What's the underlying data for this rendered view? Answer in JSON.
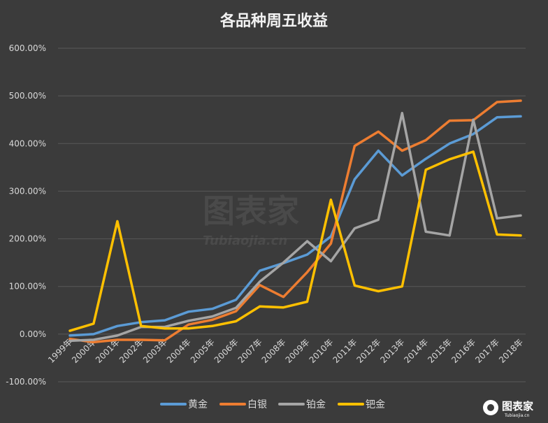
{
  "chart_data": {
    "type": "line",
    "title": "各品种周五收益",
    "categories": [
      "1999年",
      "2000年",
      "2001年",
      "2002年",
      "2003年",
      "2004年",
      "2005年",
      "2006年",
      "2007年",
      "2008年",
      "2009年",
      "2010年",
      "2011年",
      "2012年",
      "2013年",
      "2014年",
      "2015年",
      "2016年",
      "2017年",
      "2018年"
    ],
    "y_ticks": [
      "600.00%",
      "500.00%",
      "400.00%",
      "300.00%",
      "200.00%",
      "100.00%",
      "0.00%",
      "-100.00%"
    ],
    "ylim": [
      -100,
      600
    ],
    "grid": true,
    "legend_position": "bottom",
    "series": [
      {
        "name": "黄金",
        "color": "#5b9bd5",
        "values": [
          -3,
          0,
          17,
          25,
          29,
          47,
          53,
          72,
          133,
          149,
          167,
          205,
          325,
          385,
          333,
          368,
          400,
          420,
          455,
          457
        ]
      },
      {
        "name": "白银",
        "color": "#ed7d31",
        "values": [
          -10,
          -17,
          -12,
          -12,
          -13,
          20,
          30,
          48,
          103,
          78,
          130,
          190,
          395,
          425,
          385,
          407,
          448,
          449,
          487,
          490
        ]
      },
      {
        "name": "铂金",
        "color": "#a5a5a5",
        "values": [
          -14,
          -12,
          -3,
          15,
          15,
          28,
          37,
          55,
          110,
          150,
          195,
          153,
          222,
          240,
          464,
          215,
          207,
          450,
          243,
          249
        ]
      },
      {
        "name": "钯金",
        "color": "#ffc000",
        "values": [
          7,
          22,
          237,
          17,
          12,
          12,
          17,
          27,
          58,
          56,
          68,
          282,
          102,
          90,
          100,
          345,
          367,
          383,
          209,
          207
        ]
      }
    ]
  },
  "watermark": {
    "main": "图表家",
    "sub": "Tubiaojia.cn"
  },
  "logo": {
    "main": "图表家",
    "sub": "Tubiaojia.cn"
  }
}
